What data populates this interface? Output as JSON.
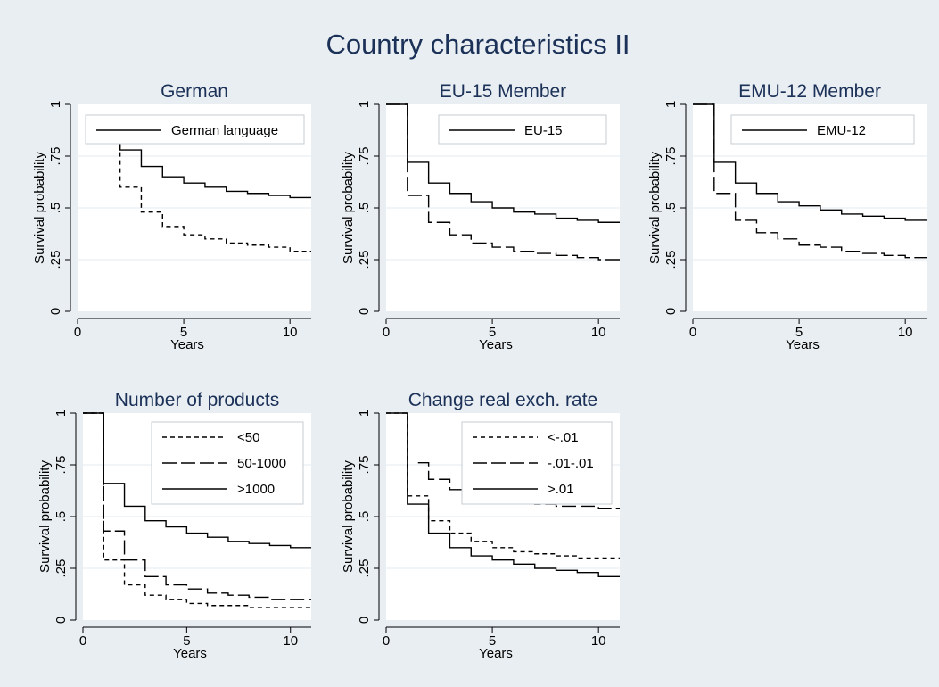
{
  "figure": {
    "title": "Country characteristics II"
  },
  "chart_data": [
    {
      "type": "line",
      "title": "German",
      "xlabel": "Years",
      "ylabel": "Survival probability",
      "xlim": [
        0,
        11
      ],
      "ylim": [
        0,
        1
      ],
      "xticks": [
        0,
        5,
        10
      ],
      "yticks": [
        0,
        0.25,
        0.5,
        0.75,
        1
      ],
      "ytick_labels": [
        "0",
        ".25",
        ".5",
        ".75",
        "1"
      ],
      "step": true,
      "grid": true,
      "legend_position": "top",
      "series": [
        {
          "name": "German language",
          "dash": "solid",
          "x": [
            1,
            2,
            3,
            4,
            5,
            6,
            7,
            8,
            9,
            10,
            11
          ],
          "y": [
            0.86,
            0.78,
            0.7,
            0.65,
            0.62,
            0.6,
            0.58,
            0.57,
            0.56,
            0.55,
            0.55
          ]
        },
        {
          "name": "",
          "dash": "dashed",
          "x": [
            1,
            2,
            3,
            4,
            5,
            6,
            7,
            8,
            9,
            10,
            11
          ],
          "y": [
            0.86,
            0.6,
            0.48,
            0.41,
            0.37,
            0.35,
            0.33,
            0.32,
            0.31,
            0.29,
            0.29
          ]
        }
      ]
    },
    {
      "type": "line",
      "title": "EU-15 Member",
      "xlabel": "Years",
      "ylabel": "Survival probability",
      "xlim": [
        0,
        11
      ],
      "ylim": [
        0,
        1
      ],
      "xticks": [
        0,
        5,
        10
      ],
      "yticks": [
        0,
        0.25,
        0.5,
        0.75,
        1
      ],
      "ytick_labels": [
        "0",
        ".25",
        ".5",
        ".75",
        "1"
      ],
      "step": true,
      "grid": true,
      "legend_position": "top",
      "series": [
        {
          "name": "EU-15",
          "dash": "solid",
          "x": [
            0,
            1,
            2,
            3,
            4,
            5,
            6,
            7,
            8,
            9,
            10,
            11
          ],
          "y": [
            1.0,
            0.72,
            0.62,
            0.57,
            0.53,
            0.5,
            0.48,
            0.47,
            0.45,
            0.44,
            0.43,
            0.43
          ]
        },
        {
          "name": "",
          "dash": "longdash",
          "x": [
            0,
            1,
            2,
            3,
            4,
            5,
            6,
            7,
            8,
            9,
            10,
            11
          ],
          "y": [
            1.0,
            0.56,
            0.43,
            0.37,
            0.33,
            0.31,
            0.29,
            0.28,
            0.27,
            0.26,
            0.25,
            0.25
          ]
        }
      ]
    },
    {
      "type": "line",
      "title": "EMU-12 Member",
      "xlabel": "Years",
      "ylabel": "Survival probability",
      "xlim": [
        0,
        11
      ],
      "ylim": [
        0,
        1
      ],
      "xticks": [
        0,
        5,
        10
      ],
      "yticks": [
        0,
        0.25,
        0.5,
        0.75,
        1
      ],
      "ytick_labels": [
        "0",
        ".25",
        ".5",
        ".75",
        "1"
      ],
      "step": true,
      "grid": true,
      "legend_position": "top",
      "series": [
        {
          "name": "EMU-12",
          "dash": "solid",
          "x": [
            0,
            1,
            2,
            3,
            4,
            5,
            6,
            7,
            8,
            9,
            10,
            11
          ],
          "y": [
            1.0,
            0.72,
            0.62,
            0.57,
            0.53,
            0.51,
            0.49,
            0.47,
            0.46,
            0.45,
            0.44,
            0.44
          ]
        },
        {
          "name": "",
          "dash": "longdash",
          "x": [
            0,
            1,
            2,
            3,
            4,
            5,
            6,
            7,
            8,
            9,
            10,
            11
          ],
          "y": [
            1.0,
            0.57,
            0.44,
            0.38,
            0.35,
            0.32,
            0.31,
            0.29,
            0.28,
            0.27,
            0.26,
            0.26
          ]
        }
      ]
    },
    {
      "type": "line",
      "title": "Number of products",
      "xlabel": "Years",
      "ylabel": "Survival probability",
      "xlim": [
        0,
        11
      ],
      "ylim": [
        0,
        1
      ],
      "xticks": [
        0,
        5,
        10
      ],
      "yticks": [
        0,
        0.25,
        0.5,
        0.75,
        1
      ],
      "ytick_labels": [
        "0",
        ".25",
        ".5",
        ".75",
        "1"
      ],
      "step": true,
      "grid": true,
      "legend_position": "top-right",
      "series": [
        {
          "name": "<50",
          "dash": "dashed",
          "x": [
            0,
            1,
            2,
            3,
            4,
            5,
            6,
            7,
            8,
            9,
            10,
            11
          ],
          "y": [
            1.0,
            0.29,
            0.17,
            0.12,
            0.1,
            0.08,
            0.07,
            0.07,
            0.06,
            0.06,
            0.06,
            0.06
          ]
        },
        {
          "name": "50-1000",
          "dash": "longdash",
          "x": [
            0,
            1,
            2,
            3,
            4,
            5,
            6,
            7,
            8,
            9,
            10,
            11
          ],
          "y": [
            1.0,
            0.43,
            0.29,
            0.21,
            0.17,
            0.15,
            0.13,
            0.12,
            0.11,
            0.1,
            0.1,
            0.1
          ]
        },
        {
          "name": ">1000",
          "dash": "solid",
          "x": [
            0,
            1,
            2,
            3,
            4,
            5,
            6,
            7,
            8,
            9,
            10,
            11
          ],
          "y": [
            1.0,
            0.66,
            0.55,
            0.48,
            0.45,
            0.42,
            0.4,
            0.38,
            0.37,
            0.36,
            0.35,
            0.35
          ]
        }
      ]
    },
    {
      "type": "line",
      "title": "Change real exch. rate",
      "xlabel": "Years",
      "ylabel": "Survival probability",
      "xlim": [
        0,
        11
      ],
      "ylim": [
        0,
        1
      ],
      "xticks": [
        0,
        5,
        10
      ],
      "yticks": [
        0,
        0.25,
        0.5,
        0.75,
        1
      ],
      "ytick_labels": [
        "0",
        ".25",
        ".5",
        ".75",
        "1"
      ],
      "step": true,
      "grid": true,
      "legend_position": "top-right",
      "series": [
        {
          "name": "<-.01",
          "dash": "dashed",
          "x": [
            0,
            1,
            2,
            3,
            4,
            5,
            6,
            7,
            8,
            9,
            10,
            11
          ],
          "y": [
            1.0,
            0.6,
            0.48,
            0.42,
            0.38,
            0.35,
            0.33,
            0.32,
            0.31,
            0.3,
            0.3,
            0.3
          ]
        },
        {
          "name": "-.01-.01",
          "dash": "longdash",
          "x": [
            1.5,
            2,
            3,
            4,
            5,
            6,
            7,
            8,
            9,
            10,
            11
          ],
          "y": [
            0.76,
            0.68,
            0.63,
            0.6,
            0.58,
            0.57,
            0.56,
            0.55,
            0.55,
            0.54,
            0.54
          ]
        },
        {
          "name": ">.01",
          "dash": "solid",
          "x": [
            0,
            1,
            2,
            3,
            4,
            5,
            6,
            7,
            8,
            9,
            10,
            11
          ],
          "y": [
            1.0,
            0.56,
            0.42,
            0.35,
            0.31,
            0.29,
            0.27,
            0.25,
            0.24,
            0.23,
            0.21,
            0.21
          ]
        }
      ]
    }
  ]
}
